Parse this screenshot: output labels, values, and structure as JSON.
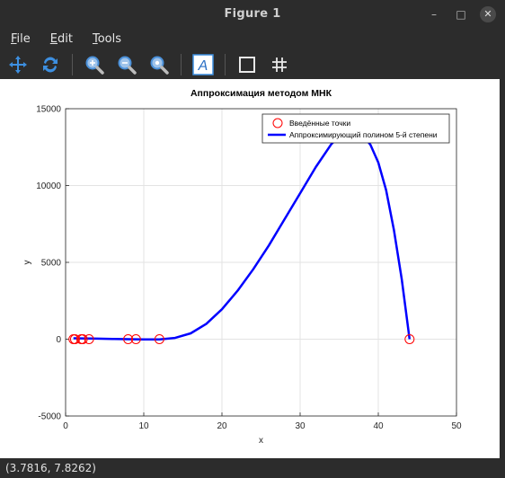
{
  "window": {
    "title": "Figure 1",
    "controls": {
      "minimize": "–",
      "maximize": "□",
      "close": "✕"
    }
  },
  "menubar": {
    "items": [
      {
        "mnemonic": "F",
        "rest": "ile"
      },
      {
        "mnemonic": "E",
        "rest": "dit"
      },
      {
        "mnemonic": "T",
        "rest": "ools"
      }
    ]
  },
  "toolbar": {
    "icons": [
      "pan-icon",
      "rotate-icon",
      "zoom-in-icon",
      "zoom-out-icon",
      "zoom-auto-icon",
      "text-icon",
      "box-icon",
      "grid-icon"
    ],
    "text_glyph": "A"
  },
  "status": {
    "coords": "(3.7816, 7.8262)"
  },
  "chart_data": {
    "type": "line",
    "title": "Аппроксимация методом МНК",
    "xlabel": "x",
    "ylabel": "y",
    "xlim": [
      0,
      50
    ],
    "ylim": [
      -5000,
      15000
    ],
    "xticks": [
      0,
      10,
      20,
      30,
      40,
      50
    ],
    "yticks": [
      -5000,
      0,
      5000,
      10000,
      15000
    ],
    "grid": true,
    "legend": "top-right",
    "colors": {
      "points": "#ff0000",
      "curve": "#0000ff"
    },
    "series": [
      {
        "name": "Введённые точки",
        "kind": "scatter",
        "x": [
          1,
          1.2,
          2,
          2.2,
          3,
          8,
          9,
          12,
          44
        ],
        "y": [
          0,
          0,
          0,
          0,
          0,
          0,
          0,
          0,
          0
        ]
      },
      {
        "name": "Аппроксимирующий полином 5-й степени",
        "kind": "line",
        "x": [
          1,
          2,
          4,
          6,
          8,
          10,
          12,
          14,
          16,
          18,
          20,
          22,
          24,
          26,
          28,
          30,
          32,
          34,
          35,
          36,
          37,
          38,
          39,
          40,
          41,
          42,
          43,
          44
        ],
        "y": [
          60,
          50,
          35,
          20,
          0,
          -15,
          -10,
          80,
          380,
          1000,
          1950,
          3150,
          4550,
          6100,
          7800,
          9500,
          11200,
          12700,
          13200,
          13500,
          13550,
          13300,
          12650,
          11500,
          9700,
          7100,
          3900,
          0
        ]
      }
    ]
  }
}
